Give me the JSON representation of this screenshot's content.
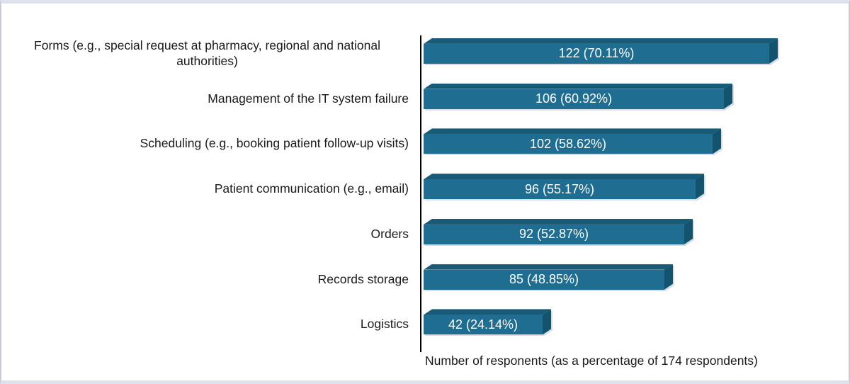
{
  "chart_data": {
    "type": "bar",
    "orientation": "horizontal",
    "title": "",
    "xlabel": "Number of responents (as a percentage of 174 respondents)",
    "ylabel": "",
    "total_respondents": 174,
    "categories": [
      "Forms (e.g., special request at pharmacy, regional and national authorities)",
      "Management of the IT system failure",
      "Scheduling (e.g., booking patient follow-up visits)",
      "Patient communication (e.g., email)",
      "Orders",
      "Records storage",
      "Logistics"
    ],
    "values": [
      122,
      106,
      102,
      96,
      92,
      85,
      42
    ],
    "percentages": [
      70.11,
      60.92,
      58.62,
      55.17,
      52.87,
      48.85,
      24.14
    ],
    "value_labels": [
      "122 (70.11%)",
      "106 (60.92%)",
      "102 (58.62%)",
      "96 (55.17%)",
      "92 (52.87%)",
      "85 (48.85%)",
      "42 (24.14%)"
    ],
    "layout_hints": {
      "gridlines": false,
      "legend": "none",
      "data_labels": "inside-center",
      "axis_line": "left-vertical-black",
      "bar_style": "3d-box"
    },
    "colors": {
      "bar_front": "#1f6d90",
      "bar_top": "#175b78",
      "bar_side": "#14536e",
      "bar_shadow": "#d9dde3",
      "label_text": "#1a1a1a",
      "value_text": "#ffffff",
      "axis_line": "#000000",
      "frame_border_h": "#dde2ec",
      "frame_border_v": "#c9cdd7"
    }
  }
}
